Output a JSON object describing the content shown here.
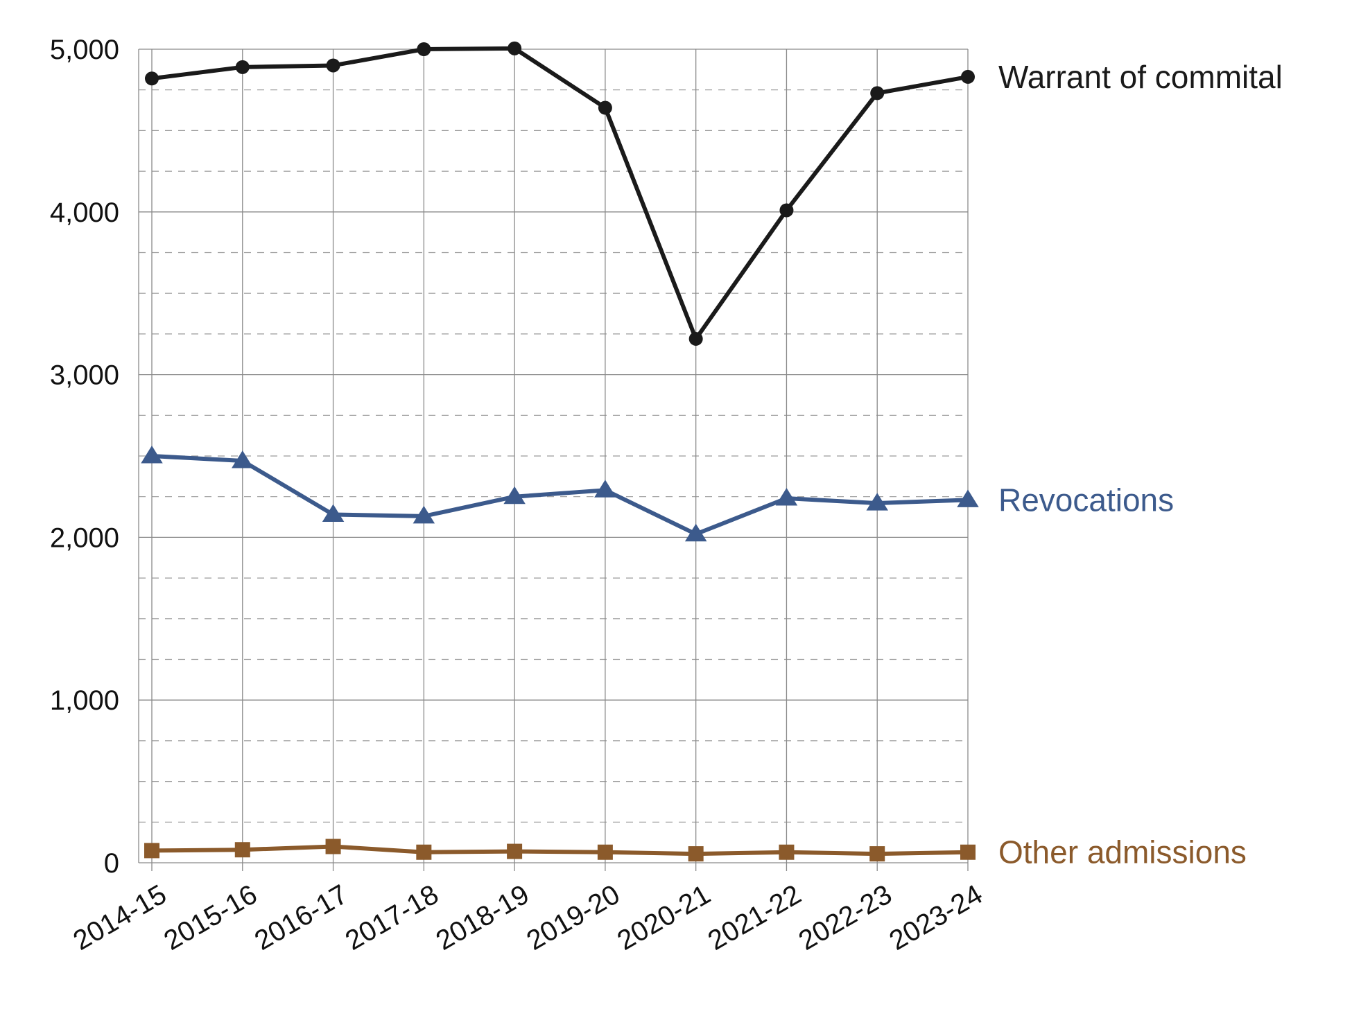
{
  "chart_data": {
    "type": "line",
    "title": "",
    "xlabel": "",
    "ylabel": "",
    "categories": [
      "2014-15",
      "2015-16",
      "2016-17",
      "2017-18",
      "2018-19",
      "2019-20",
      "2020-21",
      "2021-22",
      "2022-23",
      "2023-24"
    ],
    "ylim": [
      0,
      5000
    ],
    "yticks": [
      0,
      1000,
      2000,
      3000,
      4000,
      5000
    ],
    "ytick_labels": [
      "0",
      "1,000",
      "2,000",
      "3,000",
      "4,000",
      "5,000"
    ],
    "grid": {
      "major": true,
      "minor_dashed": true,
      "vertical": true
    },
    "legend": "inline labels at right end of each series",
    "series": [
      {
        "name": "Warrant of commital",
        "color": "#1a1a1a",
        "marker": "circle",
        "values": [
          4820,
          4890,
          4900,
          5000,
          5005,
          4640,
          3220,
          4010,
          4730,
          4830
        ]
      },
      {
        "name": "Revocations",
        "color": "#3c5a8c",
        "marker": "triangle",
        "values": [
          2500,
          2470,
          2140,
          2130,
          2250,
          2290,
          2020,
          2240,
          2210,
          2230
        ]
      },
      {
        "name": "Other admissions",
        "color": "#8b5a2b",
        "marker": "square",
        "values": [
          75,
          80,
          100,
          65,
          70,
          65,
          55,
          65,
          55,
          65
        ]
      }
    ]
  }
}
